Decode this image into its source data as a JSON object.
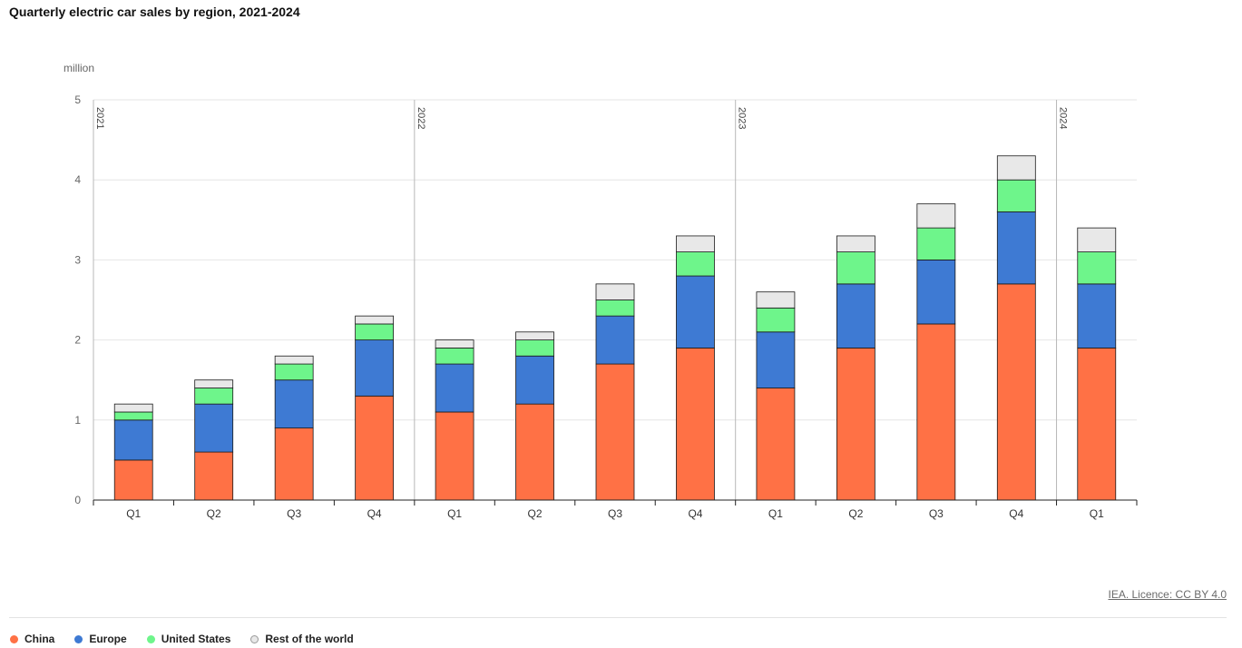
{
  "title": "Quarterly electric car sales by region, 2021-2024",
  "source": "IEA. Licence: CC BY 4.0",
  "chart_data": {
    "type": "bar",
    "stacked": true,
    "title": "Quarterly electric car sales by region, 2021-2024",
    "ylabel": "million",
    "ylim": [
      0,
      5
    ],
    "yticks": [
      0,
      1,
      2,
      3,
      4,
      5
    ],
    "grid": true,
    "legend_position": "bottom-left",
    "categories": [
      "Q1",
      "Q2",
      "Q3",
      "Q4",
      "Q1",
      "Q2",
      "Q3",
      "Q4",
      "Q1",
      "Q2",
      "Q3",
      "Q4",
      "Q1"
    ],
    "year_groups": [
      {
        "label": "2021",
        "start": 0
      },
      {
        "label": "2022",
        "start": 4
      },
      {
        "label": "2023",
        "start": 8
      },
      {
        "label": "2024",
        "start": 12
      }
    ],
    "series": [
      {
        "name": "China",
        "color": "#ff7145",
        "values": [
          0.5,
          0.6,
          0.9,
          1.3,
          1.1,
          1.2,
          1.7,
          1.9,
          1.4,
          1.9,
          2.2,
          2.7,
          1.9
        ]
      },
      {
        "name": "Europe",
        "color": "#3e7ad3",
        "values": [
          0.5,
          0.6,
          0.6,
          0.7,
          0.6,
          0.6,
          0.6,
          0.9,
          0.7,
          0.8,
          0.8,
          0.9,
          0.8
        ]
      },
      {
        "name": "United States",
        "color": "#6ef58b",
        "values": [
          0.1,
          0.2,
          0.2,
          0.2,
          0.2,
          0.2,
          0.2,
          0.3,
          0.3,
          0.4,
          0.4,
          0.4,
          0.4
        ]
      },
      {
        "name": "Rest of the world",
        "color": "#e8e8e8",
        "values": [
          0.1,
          0.1,
          0.1,
          0.1,
          0.1,
          0.1,
          0.2,
          0.2,
          0.2,
          0.2,
          0.3,
          0.3,
          0.3
        ]
      }
    ]
  }
}
